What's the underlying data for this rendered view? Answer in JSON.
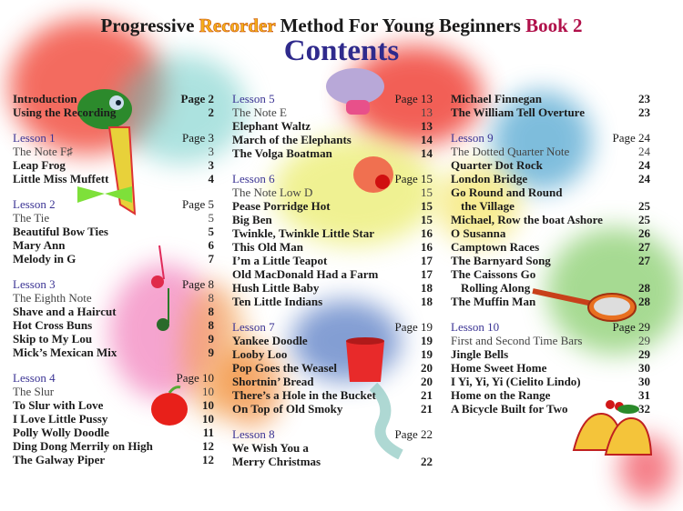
{
  "header": {
    "title_part1": "Progressive ",
    "title_recorder": "Recorder",
    "title_part2": " Method For Young Beginners ",
    "title_book": "Book 2",
    "contents": "Contents"
  },
  "colors": {
    "lesson": "#3b3494",
    "contents": "#2f2a8c",
    "recorder": "#f6b21a",
    "book": "#b0104a"
  },
  "columns": [
    {
      "groups": [
        {
          "items": [
            {
              "text": "Introduction",
              "page": "Page 2",
              "kind": "song"
            },
            {
              "text": "Using the Recording",
              "page": "2",
              "kind": "song"
            }
          ]
        },
        {
          "items": [
            {
              "text": "Lesson 1",
              "page": "Page 3",
              "kind": "lesson"
            },
            {
              "text": "The Note F♯",
              "page": "3",
              "kind": "concept"
            },
            {
              "text": "Leap Frog",
              "page": "3",
              "kind": "song"
            },
            {
              "text": "Little Miss Muffett",
              "page": "4",
              "kind": "song"
            }
          ]
        },
        {
          "items": [
            {
              "text": "Lesson 2",
              "page": "Page 5",
              "kind": "lesson"
            },
            {
              "text": "The Tie",
              "page": "5",
              "kind": "concept"
            },
            {
              "text": "Beautiful Bow Ties",
              "page": "5",
              "kind": "song"
            },
            {
              "text": "Mary Ann",
              "page": "6",
              "kind": "song"
            },
            {
              "text": "Melody in G",
              "page": "7",
              "kind": "song"
            }
          ]
        },
        {
          "items": [
            {
              "text": "Lesson 3",
              "page": "Page 8",
              "kind": "lesson"
            },
            {
              "text": "The Eighth Note",
              "page": "8",
              "kind": "concept"
            },
            {
              "text": "Shave and a Haircut",
              "page": "8",
              "kind": "song"
            },
            {
              "text": "Hot Cross Buns",
              "page": "8",
              "kind": "song"
            },
            {
              "text": "Skip to My Lou",
              "page": "9",
              "kind": "song"
            },
            {
              "text": "Mick’s Mexican Mix",
              "page": "9",
              "kind": "song"
            }
          ]
        },
        {
          "items": [
            {
              "text": "Lesson 4",
              "page": "Page 10",
              "kind": "lesson"
            },
            {
              "text": "The Slur",
              "page": "10",
              "kind": "concept"
            },
            {
              "text": "To Slur with Love",
              "page": "10",
              "kind": "song"
            },
            {
              "text": "I Love Little Pussy",
              "page": "10",
              "kind": "song"
            },
            {
              "text": "Polly Wolly Doodle",
              "page": "11",
              "kind": "song"
            },
            {
              "text": "Ding Dong Merrily on High",
              "page": "12",
              "kind": "song"
            },
            {
              "text": "The Galway Piper",
              "page": "12",
              "kind": "song"
            }
          ]
        }
      ]
    },
    {
      "groups": [
        {
          "items": [
            {
              "text": "Lesson 5",
              "page": "Page 13",
              "kind": "lesson"
            },
            {
              "text": "The Note E",
              "page": "13",
              "kind": "concept"
            },
            {
              "text": "Elephant Waltz",
              "page": "13",
              "kind": "song"
            },
            {
              "text": "March of the Elephants",
              "page": "14",
              "kind": "song"
            },
            {
              "text": "The Volga Boatman",
              "page": "14",
              "kind": "song"
            }
          ]
        },
        {
          "items": [
            {
              "text": "Lesson 6",
              "page": "Page 15",
              "kind": "lesson"
            },
            {
              "text": "The Note Low D",
              "page": "15",
              "kind": "concept"
            },
            {
              "text": "Pease Porridge Hot",
              "page": "15",
              "kind": "song"
            },
            {
              "text": "Big Ben",
              "page": "15",
              "kind": "song"
            },
            {
              "text": "Twinkle, Twinkle Little Star",
              "page": "16",
              "kind": "song"
            },
            {
              "text": "This Old Man",
              "page": "16",
              "kind": "song"
            },
            {
              "text": "I’m a Little Teapot",
              "page": "17",
              "kind": "song"
            },
            {
              "text": "Old MacDonald Had a Farm",
              "page": "17",
              "kind": "song"
            },
            {
              "text": "Hush Little Baby",
              "page": "18",
              "kind": "song"
            },
            {
              "text": "Ten Little Indians",
              "page": "18",
              "kind": "song"
            }
          ]
        },
        {
          "items": [
            {
              "text": "Lesson 7",
              "page": "Page 19",
              "kind": "lesson"
            },
            {
              "text": "Yankee Doodle",
              "page": "19",
              "kind": "song"
            },
            {
              "text": "Looby Loo",
              "page": "19",
              "kind": "song"
            },
            {
              "text": "Pop Goes the Weasel",
              "page": "20",
              "kind": "song"
            },
            {
              "text": "Shortnin’ Bread",
              "page": "20",
              "kind": "song"
            },
            {
              "text": "There’s a Hole in the Bucket",
              "page": "21",
              "kind": "song"
            },
            {
              "text": "On Top of Old Smoky",
              "page": "21",
              "kind": "song"
            }
          ]
        },
        {
          "items": [
            {
              "text": "Lesson 8",
              "page": "Page 22",
              "kind": "lesson"
            },
            {
              "text": "We Wish You a",
              "page": "",
              "kind": "song"
            },
            {
              "text": "Merry Christmas",
              "page": "22",
              "kind": "song"
            }
          ]
        }
      ]
    },
    {
      "groups": [
        {
          "items": [
            {
              "text": "Michael Finnegan",
              "page": "23",
              "kind": "song"
            },
            {
              "text": "The William Tell Overture",
              "page": "23",
              "kind": "song"
            }
          ]
        },
        {
          "items": [
            {
              "text": "Lesson 9",
              "page": "Page 24",
              "kind": "lesson"
            },
            {
              "text": "The Dotted Quarter Note",
              "page": "24",
              "kind": "concept"
            },
            {
              "text": "Quarter Dot Rock",
              "page": "24",
              "kind": "song"
            },
            {
              "text": "London Bridge",
              "page": "24",
              "kind": "song"
            },
            {
              "text": "Go Round and Round",
              "page": "",
              "kind": "song"
            },
            {
              "text": "the Village",
              "page": "25",
              "kind": "song",
              "indent": true
            },
            {
              "text": "Michael, Row the boat Ashore",
              "page": "25",
              "kind": "song"
            },
            {
              "text": "O Susanna",
              "page": "26",
              "kind": "song"
            },
            {
              "text": "Camptown Races",
              "page": "27",
              "kind": "song"
            },
            {
              "text": "The Barnyard Song",
              "page": "27",
              "kind": "song"
            },
            {
              "text": "The Caissons Go",
              "page": "",
              "kind": "song"
            },
            {
              "text": "Rolling Along",
              "page": "28",
              "kind": "song",
              "indent": true
            },
            {
              "text": "The Muffin Man",
              "page": "28",
              "kind": "song"
            }
          ]
        },
        {
          "items": [
            {
              "text": "Lesson 10",
              "page": "Page 29",
              "kind": "lesson"
            },
            {
              "text": "First and Second Time Bars",
              "page": "29",
              "kind": "concept"
            },
            {
              "text": "Jingle Bells",
              "page": "29",
              "kind": "song"
            },
            {
              "text": "Home Sweet Home",
              "page": "30",
              "kind": "song"
            },
            {
              "text": "I Yi, Yi, Yi (Cielito Lindo)",
              "page": "30",
              "kind": "song"
            },
            {
              "text": "Home on the Range",
              "page": "31",
              "kind": "song"
            },
            {
              "text": "A Bicycle Built for Two",
              "page": "32",
              "kind": "song"
            }
          ]
        }
      ]
    }
  ]
}
